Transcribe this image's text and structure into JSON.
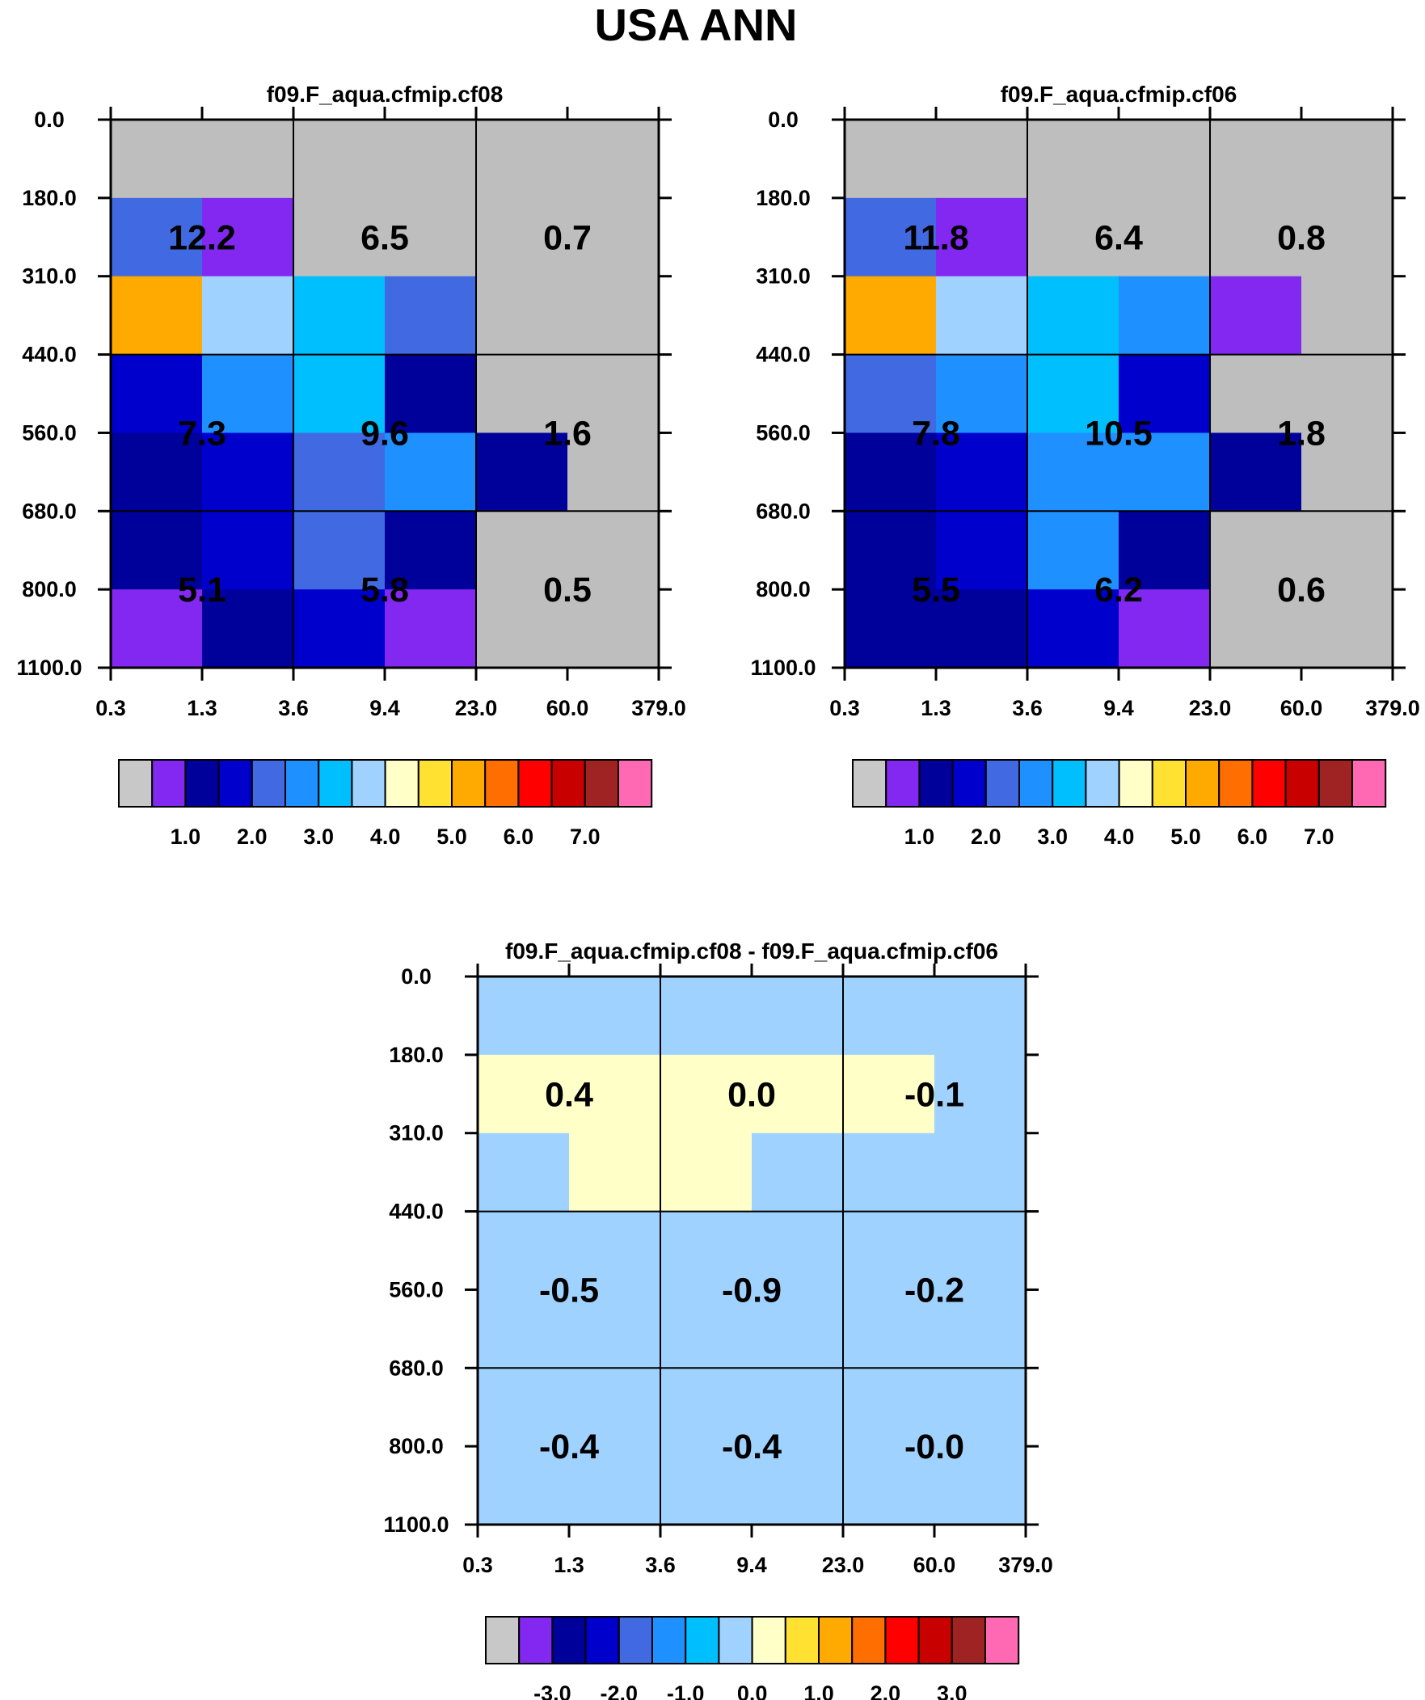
{
  "figure": {
    "title": "USA ANN"
  },
  "palette": {
    "c0": "#c8c8c8",
    "c1": "#8228f0",
    "c2": "#00009b",
    "c3": "#0000cd",
    "c4": "#4169e1",
    "c5": "#1e90ff",
    "c6": "#00bfff",
    "c7": "#a0d2ff",
    "c8": "#ffffc8",
    "c9": "#ffe132",
    "c10": "#ffaa00",
    "c11": "#ff6e00",
    "c12": "#ff0000",
    "c13": "#c80000",
    "c14": "#a02323",
    "c15": "#ff69b4",
    "nodata": "#bebebe"
  },
  "chart_data": [
    {
      "type": "heatmap",
      "title": "f09.F_aqua.cfmip.cf08",
      "x_ticks": [
        "0.3",
        "1.3",
        "3.6",
        "9.4",
        "23.0",
        "60.0",
        "379.0"
      ],
      "y_ticks": [
        "0.0",
        "180.0",
        "310.0",
        "440.0",
        "560.0",
        "680.0",
        "800.0",
        "1100.0"
      ],
      "cells": [
        [
          "nodata",
          "nodata",
          "nodata",
          "nodata",
          "nodata",
          "nodata"
        ],
        [
          "c4",
          "c1",
          "nodata",
          "nodata",
          "nodata",
          "nodata"
        ],
        [
          "c10",
          "c7",
          "c6",
          "c4",
          "nodata",
          "nodata"
        ],
        [
          "c3",
          "c5",
          "c6",
          "c2",
          "nodata",
          "nodata"
        ],
        [
          "c2",
          "c3",
          "c4",
          "c5",
          "c2",
          "nodata"
        ],
        [
          "c2",
          "c3",
          "c4",
          "c2",
          "nodata",
          "nodata"
        ],
        [
          "c1",
          "c2",
          "c3",
          "c1",
          "nodata",
          "nodata"
        ]
      ],
      "group_values": [
        [
          "12.2",
          "6.5",
          "0.7"
        ],
        [
          "7.3",
          "9.6",
          "1.6"
        ],
        [
          "5.1",
          "5.8",
          "0.5"
        ]
      ],
      "colorbar": {
        "colors": [
          "c0",
          "c1",
          "c2",
          "c3",
          "c4",
          "c5",
          "c6",
          "c7",
          "c8",
          "c9",
          "c10",
          "c11",
          "c12",
          "c13",
          "c14",
          "c15"
        ],
        "labels": [
          "1.0",
          "2.0",
          "3.0",
          "4.0",
          "5.0",
          "6.0",
          "7.0"
        ]
      }
    },
    {
      "type": "heatmap",
      "title": "f09.F_aqua.cfmip.cf06",
      "x_ticks": [
        "0.3",
        "1.3",
        "3.6",
        "9.4",
        "23.0",
        "60.0",
        "379.0"
      ],
      "y_ticks": [
        "0.0",
        "180.0",
        "310.0",
        "440.0",
        "560.0",
        "680.0",
        "800.0",
        "1100.0"
      ],
      "cells": [
        [
          "nodata",
          "nodata",
          "nodata",
          "nodata",
          "nodata",
          "nodata"
        ],
        [
          "c4",
          "c1",
          "nodata",
          "nodata",
          "nodata",
          "nodata"
        ],
        [
          "c10",
          "c7",
          "c6",
          "c5",
          "c1",
          "nodata"
        ],
        [
          "c4",
          "c5",
          "c6",
          "c3",
          "nodata",
          "nodata"
        ],
        [
          "c2",
          "c3",
          "c5",
          "c5",
          "c2",
          "nodata"
        ],
        [
          "c2",
          "c3",
          "c5",
          "c2",
          "nodata",
          "nodata"
        ],
        [
          "c2",
          "c2",
          "c3",
          "c1",
          "nodata",
          "nodata"
        ]
      ],
      "group_values": [
        [
          "11.8",
          "6.4",
          "0.8"
        ],
        [
          "7.8",
          "10.5",
          "1.8"
        ],
        [
          "5.5",
          "6.2",
          "0.6"
        ]
      ],
      "colorbar": {
        "colors": [
          "c0",
          "c1",
          "c2",
          "c3",
          "c4",
          "c5",
          "c6",
          "c7",
          "c8",
          "c9",
          "c10",
          "c11",
          "c12",
          "c13",
          "c14",
          "c15"
        ],
        "labels": [
          "1.0",
          "2.0",
          "3.0",
          "4.0",
          "5.0",
          "6.0",
          "7.0"
        ]
      }
    },
    {
      "type": "heatmap",
      "title": "f09.F_aqua.cfmip.cf08 - f09.F_aqua.cfmip.cf06",
      "x_ticks": [
        "0.3",
        "1.3",
        "3.6",
        "9.4",
        "23.0",
        "60.0",
        "379.0"
      ],
      "y_ticks": [
        "0.0",
        "180.0",
        "310.0",
        "440.0",
        "560.0",
        "680.0",
        "800.0",
        "1100.0"
      ],
      "cells": [
        [
          "c7",
          "c7",
          "c7",
          "c7",
          "c7",
          "c7"
        ],
        [
          "c8",
          "c8",
          "c8",
          "c8",
          "c8",
          "c7"
        ],
        [
          "c7",
          "c8",
          "c8",
          "c7",
          "c7",
          "c7"
        ],
        [
          "c7",
          "c7",
          "c7",
          "c7",
          "c7",
          "c7"
        ],
        [
          "c7",
          "c7",
          "c7",
          "c7",
          "c7",
          "c7"
        ],
        [
          "c7",
          "c7",
          "c7",
          "c7",
          "c7",
          "c7"
        ],
        [
          "c7",
          "c7",
          "c7",
          "c7",
          "c7",
          "c7"
        ]
      ],
      "group_values": [
        [
          "0.4",
          "0.0",
          "-0.1"
        ],
        [
          "-0.5",
          "-0.9",
          "-0.2"
        ],
        [
          "-0.4",
          "-0.4",
          "-0.0"
        ]
      ],
      "colorbar": {
        "colors": [
          "c0",
          "c1",
          "c2",
          "c3",
          "c4",
          "c5",
          "c6",
          "c7",
          "c8",
          "c9",
          "c10",
          "c11",
          "c12",
          "c13",
          "c14",
          "c15"
        ],
        "labels": [
          "-3.0",
          "-2.0",
          "-1.0",
          "0.0",
          "1.0",
          "2.0",
          "3.0"
        ]
      }
    }
  ]
}
